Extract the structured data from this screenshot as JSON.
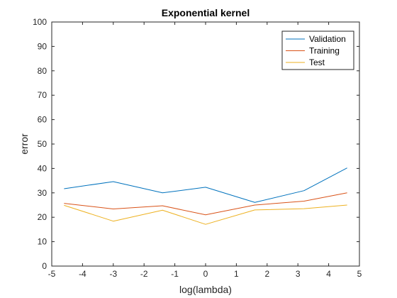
{
  "chart_data": {
    "type": "line",
    "title": "Exponential kernel",
    "xlabel": "log(lambda)",
    "ylabel": "error",
    "xlim": [
      -5,
      5
    ],
    "ylim": [
      0,
      100
    ],
    "xticks": [
      "-5",
      "-4",
      "-3",
      "-2",
      "-1",
      "0",
      "1",
      "2",
      "3",
      "4",
      "5"
    ],
    "yticks": [
      "0",
      "10",
      "20",
      "30",
      "40",
      "50",
      "60",
      "70",
      "80",
      "90",
      "100"
    ],
    "x": [
      -4.6,
      -3.0,
      -1.4,
      0.0,
      1.6,
      3.2,
      4.6
    ],
    "series": [
      {
        "name": "Validation",
        "color": "#0072BD",
        "values": [
          31.7,
          34.6,
          30.0,
          32.3,
          26.1,
          30.9,
          40.2
        ]
      },
      {
        "name": "Training",
        "color": "#D95319",
        "values": [
          25.7,
          23.4,
          24.7,
          21.0,
          25.0,
          26.6,
          30.0
        ]
      },
      {
        "name": "Test",
        "color": "#EDB120",
        "values": [
          24.9,
          18.4,
          22.9,
          17.1,
          23.0,
          23.5,
          25.0
        ]
      }
    ],
    "legend_position": "top-right",
    "grid": false
  }
}
